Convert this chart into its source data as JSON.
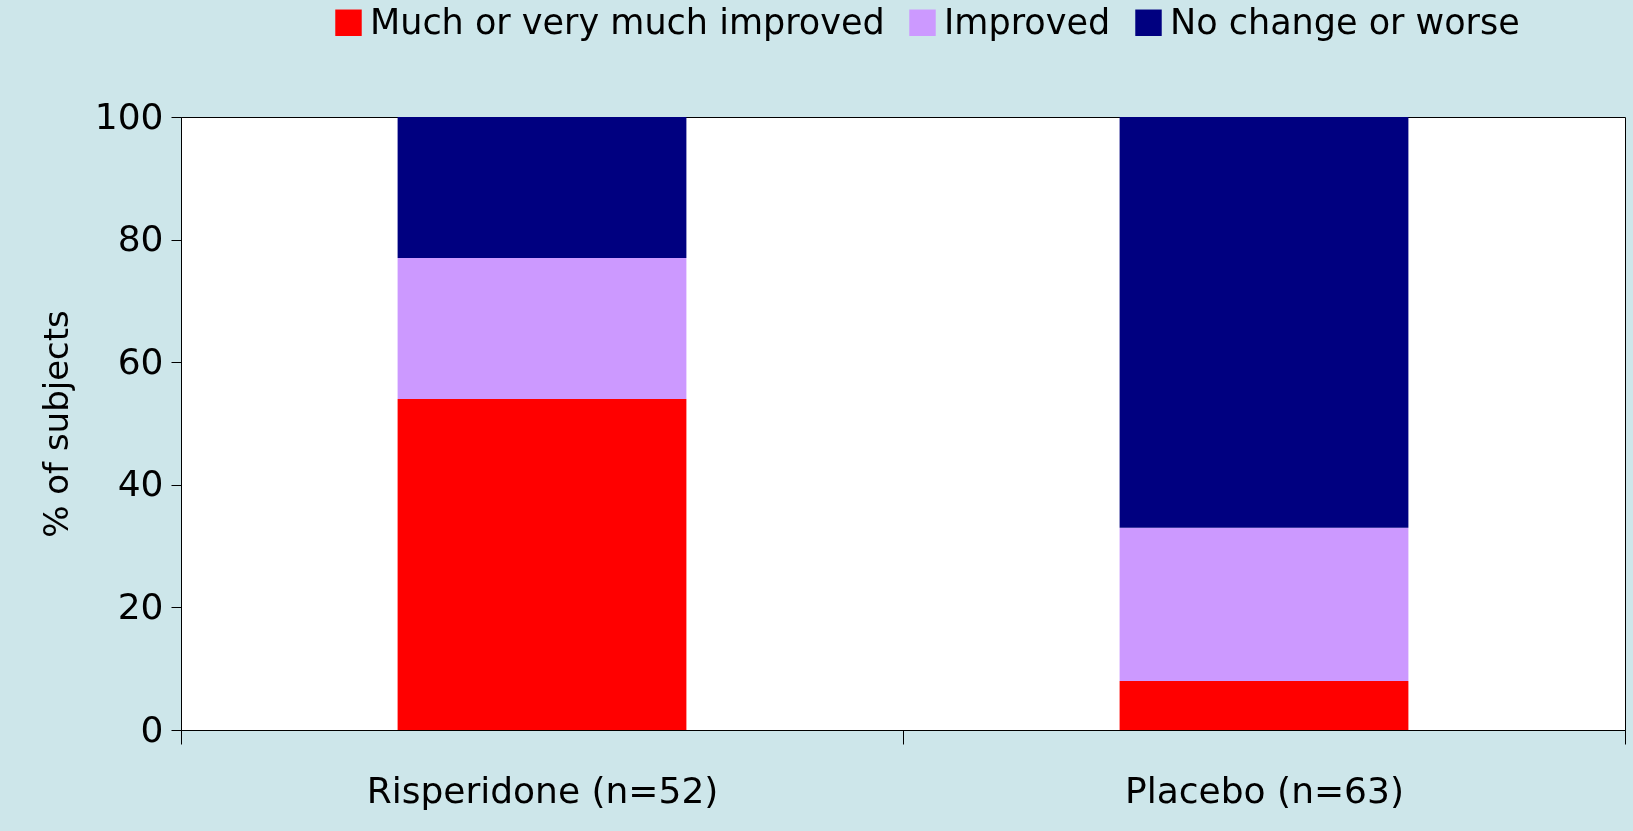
{
  "chart_data": {
    "type": "bar",
    "stacked": true,
    "ylabel": "% of subjects",
    "categories": [
      "Risperidone (n=52)",
      "Placebo (n=63)"
    ],
    "series": [
      {
        "name": "Much or very much improved",
        "color": "#ff0000",
        "values": [
          54,
          8
        ]
      },
      {
        "name": "Improved",
        "color": "#cc99ff",
        "values": [
          23,
          25
        ]
      },
      {
        "name": "No change or worse",
        "color": "#000080",
        "values": [
          23,
          67
        ]
      }
    ],
    "ylim": [
      0,
      100
    ],
    "yticks": [
      0,
      20,
      40,
      60,
      80,
      100
    ],
    "grid": false,
    "legend": "top right"
  }
}
